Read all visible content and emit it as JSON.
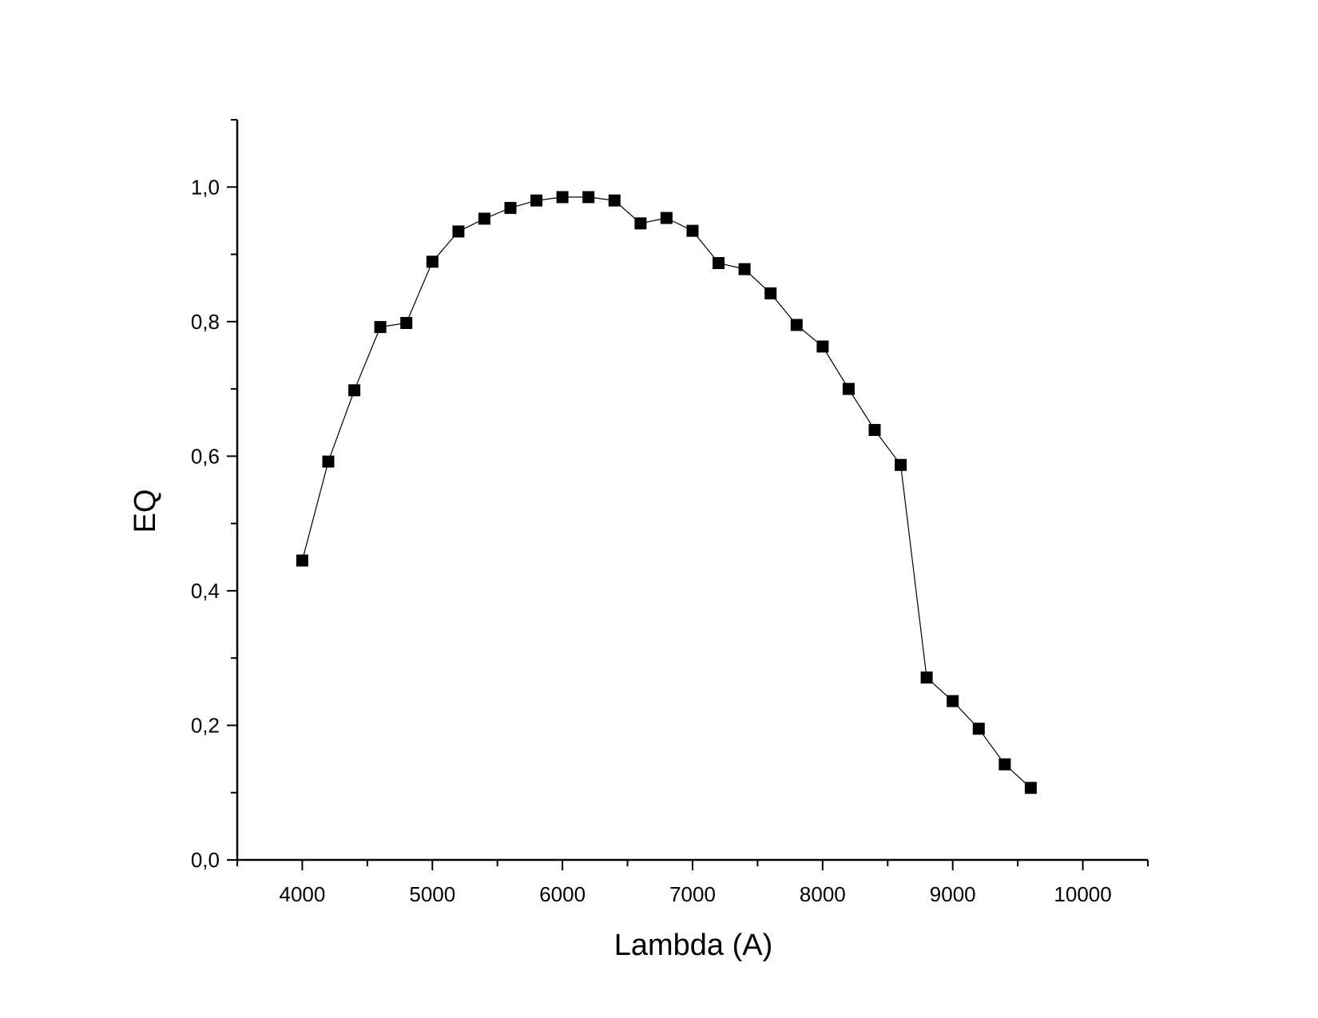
{
  "chart_data": {
    "type": "line",
    "title": "",
    "xlabel": "Lambda (A)",
    "ylabel": "EQ",
    "xlim": [
      3500,
      10500
    ],
    "ylim": [
      0.0,
      1.1
    ],
    "x_ticks": [
      4000,
      5000,
      6000,
      7000,
      8000,
      9000,
      10000
    ],
    "x_tick_labels": [
      "4000",
      "5000",
      "6000",
      "7000",
      "8000",
      "9000",
      "10000"
    ],
    "y_ticks": [
      0.0,
      0.2,
      0.4,
      0.6,
      0.8,
      1.0
    ],
    "y_tick_labels": [
      "0,0",
      "0,2",
      "0,4",
      "0,6",
      "0,8",
      "1,0"
    ],
    "grid": false,
    "legend": "none",
    "marker": "square",
    "colors": {
      "line": "#000000",
      "marker": "#000000",
      "axis": "#000000"
    },
    "series": [
      {
        "x": [
          4000,
          4200,
          4400,
          4600,
          4800,
          5000,
          5200,
          5400,
          5600,
          5800,
          6000,
          6200,
          6400,
          6600,
          6800,
          7000,
          7200,
          7400,
          7600,
          7800,
          8000,
          8200,
          8400,
          8600,
          8800,
          9000,
          9200,
          9400,
          9600
        ],
        "values": [
          0.445,
          0.592,
          0.698,
          0.792,
          0.798,
          0.889,
          0.934,
          0.953,
          0.969,
          0.98,
          0.985,
          0.985,
          0.98,
          0.946,
          0.954,
          0.935,
          0.887,
          0.878,
          0.842,
          0.795,
          0.763,
          0.7,
          0.639,
          0.587,
          0.271,
          0.236,
          0.195,
          0.142,
          0.107
        ]
      }
    ]
  }
}
